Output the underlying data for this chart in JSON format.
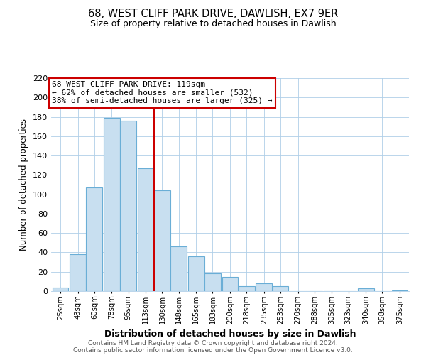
{
  "title": "68, WEST CLIFF PARK DRIVE, DAWLISH, EX7 9ER",
  "subtitle": "Size of property relative to detached houses in Dawlish",
  "xlabel": "Distribution of detached houses by size in Dawlish",
  "ylabel": "Number of detached properties",
  "bin_labels": [
    "25sqm",
    "43sqm",
    "60sqm",
    "78sqm",
    "95sqm",
    "113sqm",
    "130sqm",
    "148sqm",
    "165sqm",
    "183sqm",
    "200sqm",
    "218sqm",
    "235sqm",
    "253sqm",
    "270sqm",
    "288sqm",
    "305sqm",
    "323sqm",
    "340sqm",
    "358sqm",
    "375sqm"
  ],
  "bar_heights": [
    4,
    38,
    107,
    179,
    176,
    127,
    104,
    46,
    36,
    18,
    15,
    5,
    8,
    5,
    0,
    0,
    0,
    0,
    3,
    0,
    1
  ],
  "bar_color": "#c8dff0",
  "bar_edge_color": "#6aaed6",
  "vline_color": "#cc0000",
  "annotation_title": "68 WEST CLIFF PARK DRIVE: 119sqm",
  "annotation_line1": "← 62% of detached houses are smaller (532)",
  "annotation_line2": "38% of semi-detached houses are larger (325) →",
  "annotation_box_color": "#cc0000",
  "ylim": [
    0,
    220
  ],
  "yticks": [
    0,
    20,
    40,
    60,
    80,
    100,
    120,
    140,
    160,
    180,
    200,
    220
  ],
  "footnote1": "Contains HM Land Registry data © Crown copyright and database right 2024.",
  "footnote2": "Contains public sector information licensed under the Open Government Licence v3.0.",
  "bin_starts": [
    16,
    34,
    51,
    69,
    86,
    104,
    121,
    138,
    156,
    173,
    191,
    208,
    226,
    243,
    261,
    278,
    296,
    313,
    331,
    348,
    366
  ],
  "bin_width": 17,
  "vline_pos": 121
}
